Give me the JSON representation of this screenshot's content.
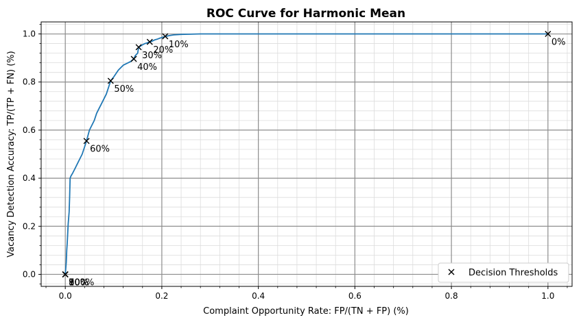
{
  "chart_data": {
    "type": "line",
    "title": "ROC Curve for Harmonic Mean",
    "xlabel": "Complaint Opportunity Rate: FP/(TN + FP) (%)",
    "ylabel": "Vacancy Detection Accuracy: TP/(TP + FN) (%)",
    "xlim": [
      -0.05,
      1.05
    ],
    "ylim": [
      -0.05,
      1.05
    ],
    "x_ticks": [
      "0.0",
      "0.2",
      "0.4",
      "0.6",
      "0.8",
      "1.0"
    ],
    "y_ticks": [
      "0.0",
      "0.2",
      "0.4",
      "0.6",
      "0.8",
      "1.0"
    ],
    "grid": {
      "major": true,
      "minor": true
    },
    "colors": {
      "curve": "#1f77b4",
      "markers": "#000000",
      "major_grid": "#8c8c8c",
      "minor_grid": "#dcdcdc"
    },
    "series": [
      {
        "x": [
          0.0,
          0.002,
          0.003,
          0.004,
          0.005,
          0.006,
          0.008,
          0.009,
          0.01,
          0.012,
          0.015,
          0.02,
          0.025,
          0.03,
          0.035,
          0.04,
          0.044,
          0.05,
          0.055,
          0.06,
          0.065,
          0.07,
          0.075,
          0.08,
          0.085,
          0.09,
          0.094,
          0.1,
          0.105,
          0.11,
          0.115,
          0.12,
          0.125,
          0.13,
          0.135,
          0.14,
          0.142,
          0.145,
          0.15,
          0.152,
          0.155,
          0.16,
          0.165,
          0.17,
          0.175,
          0.18,
          0.185,
          0.19,
          0.195,
          0.2,
          0.205,
          0.208,
          0.215,
          0.225,
          0.24,
          0.26,
          0.28,
          0.32,
          0.4,
          0.5,
          0.6,
          0.8,
          1.0
        ],
        "y": [
          0.0,
          0.05,
          0.1,
          0.13,
          0.17,
          0.21,
          0.26,
          0.32,
          0.4,
          0.41,
          0.42,
          0.44,
          0.46,
          0.48,
          0.5,
          0.53,
          0.555,
          0.6,
          0.62,
          0.64,
          0.67,
          0.69,
          0.71,
          0.73,
          0.75,
          0.78,
          0.805,
          0.82,
          0.835,
          0.85,
          0.86,
          0.87,
          0.875,
          0.88,
          0.885,
          0.893,
          0.896,
          0.91,
          0.92,
          0.945,
          0.948,
          0.955,
          0.96,
          0.963,
          0.967,
          0.97,
          0.975,
          0.978,
          0.982,
          0.985,
          0.988,
          0.99,
          0.993,
          0.996,
          0.998,
          0.999,
          1.0,
          1.0,
          1.0,
          1.0,
          1.0,
          1.0,
          1.0
        ]
      }
    ],
    "thresholds": [
      {
        "label": "0%",
        "x": 1.0,
        "y": 1.0
      },
      {
        "label": "10%",
        "x": 0.207,
        "y": 0.99
      },
      {
        "label": "20%",
        "x": 0.175,
        "y": 0.967
      },
      {
        "label": "30%",
        "x": 0.152,
        "y": 0.945
      },
      {
        "label": "40%",
        "x": 0.142,
        "y": 0.896
      },
      {
        "label": "50%",
        "x": 0.094,
        "y": 0.805
      },
      {
        "label": "60%",
        "x": 0.044,
        "y": 0.555
      },
      {
        "label": "70%",
        "x": 0.0,
        "y": 0.0
      },
      {
        "label": "80%",
        "x": 0.0,
        "y": 0.0
      },
      {
        "label": "90%",
        "x": 0.0,
        "y": 0.0
      },
      {
        "label": "100%",
        "x": 0.0,
        "y": 0.0
      }
    ],
    "legend": {
      "position": "lower-right",
      "entries": [
        "Decision Thresholds"
      ]
    }
  }
}
